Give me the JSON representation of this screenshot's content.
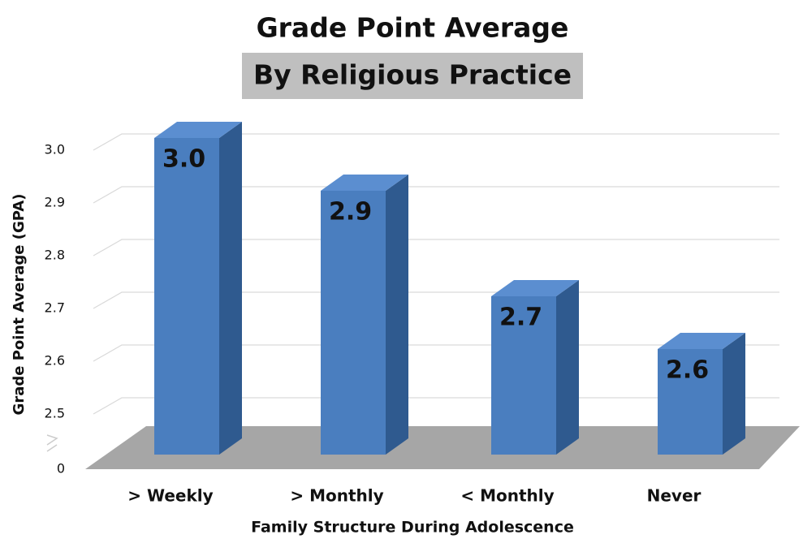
{
  "chart_data": {
    "type": "bar3d",
    "title": "Grade Point Average",
    "subtitle": "By Religious Practice",
    "x_label": "Family Structure During Adolescence",
    "y_label": "Grade Point Average (GPA)",
    "categories": [
      "> Weekly",
      "> Monthly",
      "< Monthly",
      "Never"
    ],
    "values": [
      3.0,
      2.9,
      2.7,
      2.6
    ],
    "value_labels": [
      "3.0",
      "2.9",
      "2.7",
      "2.6"
    ],
    "color": "#4a7ebf",
    "ylim": [
      0,
      3.0
    ],
    "yticks": [
      0,
      2.5,
      2.6,
      2.7,
      2.8,
      2.9,
      {
        "value": 3.0,
        "label": "3.0"
      }
    ],
    "grid": true
  }
}
